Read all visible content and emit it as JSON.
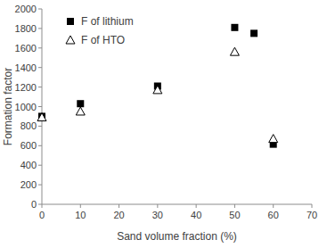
{
  "chart_data": {
    "type": "scatter",
    "x_label": "Sand volume fraction (%)",
    "y_label": "Formation factor",
    "series": [
      {
        "name": "F of lithium",
        "color": "#000000",
        "marker": "square",
        "x": [
          0,
          10,
          30,
          50,
          55,
          60
        ],
        "values": [
          900,
          1030,
          1210,
          1810,
          1750,
          615
        ]
      },
      {
        "name": "F of HTO",
        "color": "#000000",
        "marker": "triangle",
        "x": [
          0,
          10,
          30,
          50,
          60
        ],
        "values": [
          890,
          950,
          1170,
          1560,
          670
        ]
      }
    ],
    "xlim": [
      0,
      70
    ],
    "xticks": [
      0,
      10,
      20,
      30,
      40,
      50,
      60,
      70
    ],
    "ylim": [
      0,
      2000
    ],
    "yticks": [
      0,
      200,
      400,
      600,
      800,
      1000,
      1200,
      1400,
      1600,
      1800,
      2000
    ],
    "grid": false,
    "legend": "top-left"
  }
}
